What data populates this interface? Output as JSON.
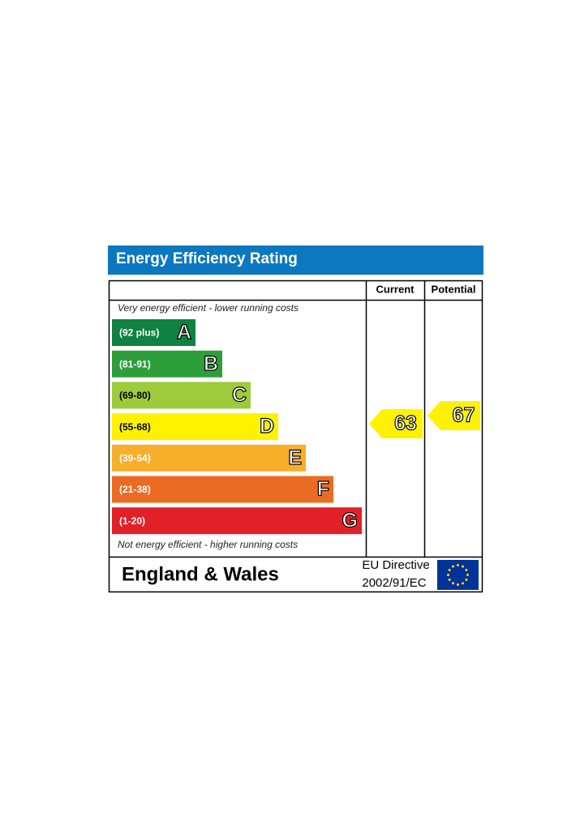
{
  "header": {
    "title": "Energy Efficiency Rating"
  },
  "columns": {
    "current": "Current",
    "potential": "Potential"
  },
  "notes": {
    "top": "Very energy efficient - lower running costs",
    "bottom": "Not energy efficient - higher running costs"
  },
  "bands": [
    {
      "range": "(92 plus)",
      "letter": "A",
      "color": "#0f8140"
    },
    {
      "range": "(81-91)",
      "letter": "B",
      "color": "#2c9f3a"
    },
    {
      "range": "(69-80)",
      "letter": "C",
      "color": "#9dcb3c"
    },
    {
      "range": "(55-68)",
      "letter": "D",
      "color": "#fef200"
    },
    {
      "range": "(39-54)",
      "letter": "E",
      "color": "#f7ae2a"
    },
    {
      "range": "(21-38)",
      "letter": "F",
      "color": "#ec6b23"
    },
    {
      "range": "(1-20)",
      "letter": "G",
      "color": "#e2202a"
    }
  ],
  "ratings": {
    "current": 63,
    "potential": 67,
    "color": "#fef200"
  },
  "footer": {
    "region": "England & Wales",
    "directive": "EU Directive",
    "code": "2002/91/EC"
  }
}
